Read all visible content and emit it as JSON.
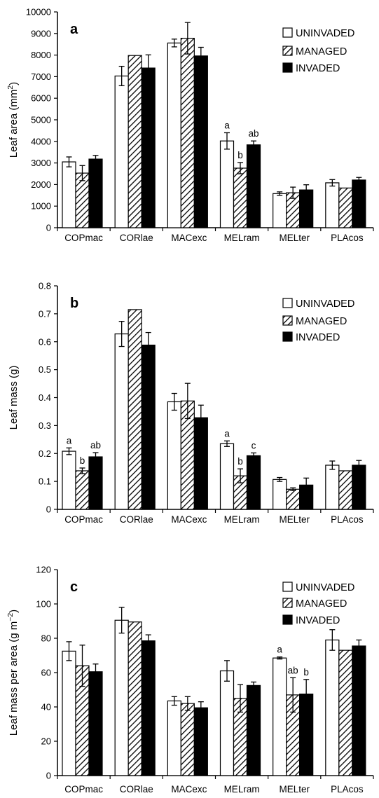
{
  "chart_data": [
    {
      "type": "bar",
      "panel_label": "a",
      "ylabel": "Leaf area (mm²)",
      "ylabel_main": "Leaf area (mm",
      "ylabel_sup": "2",
      "ylabel_tail": ")",
      "ylim": [
        0,
        10000
      ],
      "yticks": [
        0,
        1000,
        2000,
        3000,
        4000,
        5000,
        6000,
        7000,
        8000,
        9000,
        10000
      ],
      "categories": [
        "COPmac",
        "CORlae",
        "MACexc",
        "MELram",
        "MELter",
        "PLAcos"
      ],
      "legend_position": "top-right",
      "series": [
        {
          "name": "UNINVADED",
          "values": [
            3050,
            7030,
            8560,
            4020,
            1580,
            2080
          ],
          "errors": [
            230,
            450,
            180,
            380,
            80,
            150
          ]
        },
        {
          "name": "MANAGED",
          "values": [
            2530,
            7980,
            8780,
            2760,
            1620,
            1840
          ],
          "errors": [
            350,
            null,
            730,
            260,
            260,
            null
          ]
        },
        {
          "name": "INVADED",
          "values": [
            3180,
            7400,
            7960,
            3840,
            1750,
            2210
          ],
          "errors": [
            170,
            610,
            400,
            180,
            240,
            120
          ]
        }
      ],
      "annotations": [
        {
          "category": "MELram",
          "series": "UNINVADED",
          "text": "a"
        },
        {
          "category": "MELram",
          "series": "MANAGED",
          "text": "b"
        },
        {
          "category": "MELram",
          "series": "INVADED",
          "text": "ab"
        }
      ]
    },
    {
      "type": "bar",
      "panel_label": "b",
      "ylabel": "Leaf mass (g)",
      "ylabel_main": "Leaf mass (g)",
      "ylabel_sup": "",
      "ylabel_tail": "",
      "ylim": [
        0,
        0.8
      ],
      "yticks": [
        "0",
        "0.1",
        "0.2",
        "0.3",
        "0.4",
        "0.5",
        "0.6",
        "0.7",
        "0.8"
      ],
      "categories": [
        "COPmac",
        "CORlae",
        "MACexc",
        "MELram",
        "MELter",
        "PLAcos"
      ],
      "legend_position": "top-right",
      "series": [
        {
          "name": "UNINVADED",
          "values": [
            0.208,
            0.628,
            0.385,
            0.235,
            0.107,
            0.158
          ],
          "errors": [
            0.012,
            0.045,
            0.03,
            0.01,
            0.007,
            0.015
          ]
        },
        {
          "name": "MANAGED",
          "values": [
            0.138,
            0.715,
            0.388,
            0.12,
            0.072,
            0.138
          ],
          "errors": [
            0.01,
            null,
            0.063,
            0.025,
            0.005,
            null
          ]
        },
        {
          "name": "INVADED",
          "values": [
            0.188,
            0.588,
            0.328,
            0.192,
            0.087,
            0.158
          ],
          "errors": [
            0.015,
            0.045,
            0.045,
            0.01,
            0.025,
            0.017
          ]
        }
      ],
      "annotations": [
        {
          "category": "COPmac",
          "series": "UNINVADED",
          "text": "a"
        },
        {
          "category": "COPmac",
          "series": "MANAGED",
          "text": "b"
        },
        {
          "category": "COPmac",
          "series": "INVADED",
          "text": "ab"
        },
        {
          "category": "MELram",
          "series": "UNINVADED",
          "text": "a"
        },
        {
          "category": "MELram",
          "series": "MANAGED",
          "text": "b"
        },
        {
          "category": "MELram",
          "series": "INVADED",
          "text": "c"
        }
      ]
    },
    {
      "type": "bar",
      "panel_label": "c",
      "ylabel": "Leaf mass per area (g m⁻²)",
      "ylabel_main": "Leaf mass per area (g m",
      "ylabel_sup": "−2",
      "ylabel_tail": ")",
      "ylim": [
        0,
        120
      ],
      "yticks": [
        0,
        20,
        40,
        60,
        80,
        100,
        120
      ],
      "categories": [
        "COPmac",
        "CORlae",
        "MACexc",
        "MELram",
        "MELter",
        "PLAcos"
      ],
      "legend_position": "top-right",
      "series": [
        {
          "name": "UNINVADED",
          "values": [
            72.5,
            90.5,
            43.5,
            61,
            68.5,
            79
          ],
          "errors": [
            5.5,
            7.5,
            2.5,
            6,
            0.6,
            6
          ]
        },
        {
          "name": "MANAGED",
          "values": [
            64,
            89.5,
            42,
            45,
            47,
            73
          ],
          "errors": [
            12,
            null,
            4,
            8,
            10,
            null
          ]
        },
        {
          "name": "INVADED",
          "values": [
            60.5,
            78.5,
            39.5,
            52.5,
            47.5,
            75.5
          ],
          "errors": [
            4.5,
            3.5,
            3.5,
            2,
            8.5,
            3.5
          ]
        }
      ],
      "annotations": [
        {
          "category": "MELter",
          "series": "UNINVADED",
          "text": "a"
        },
        {
          "category": "MELter",
          "series": "MANAGED",
          "text": "ab"
        },
        {
          "category": "MELter",
          "series": "INVADED",
          "text": "b"
        }
      ]
    }
  ]
}
